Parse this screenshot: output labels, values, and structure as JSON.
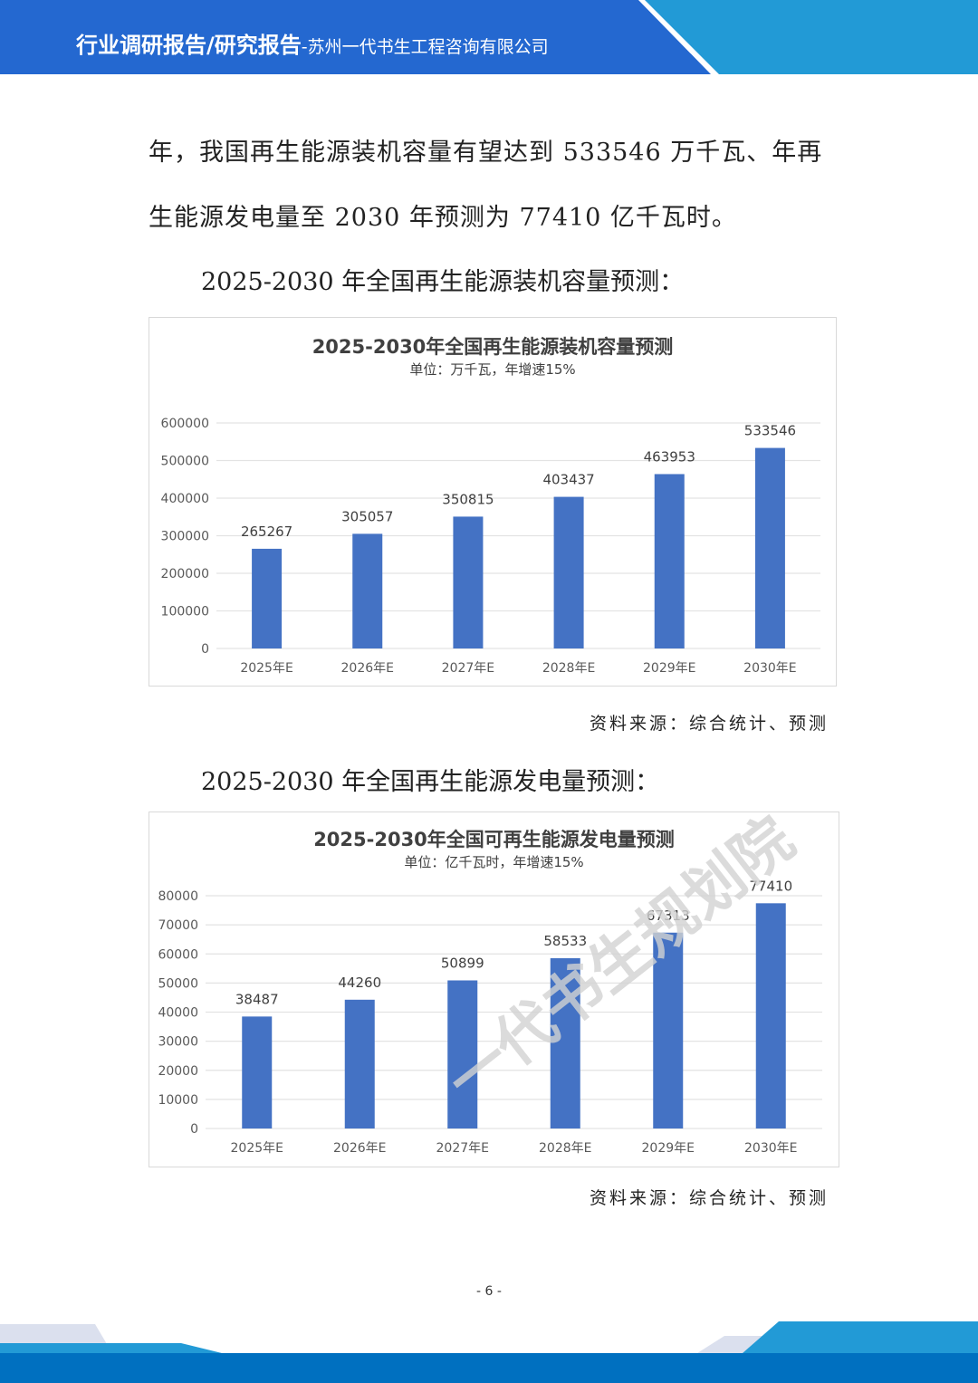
{
  "header": {
    "title_main": "行业调研报告/研究报告",
    "title_sub": "-苏州一代书生工程咨询有限公司",
    "colors": {
      "dark": "#2468d0",
      "light": "#229ad6"
    }
  },
  "body": {
    "para_line1": "年，我国再生能源装机容量有望达到 533546 万千瓦、年再",
    "para_line2": "生能源发电量至 2030 年预测为 77410 亿千瓦时。",
    "caption1": "2025-2030 年全国再生能源装机容量预测：",
    "source1": "资料来源：综合统计、预测",
    "caption2": "2025-2030 年全国再生能源发电量预测：",
    "source2": "资料来源：综合统计、预测"
  },
  "chart_data": [
    {
      "type": "bar",
      "title": "2025-2030年全国再生能源装机容量预测",
      "subtitle": "单位：万千瓦，年增速15%",
      "categories": [
        "2025年E",
        "2026年E",
        "2027年E",
        "2028年E",
        "2029年E",
        "2030年E"
      ],
      "values": [
        265267,
        305057,
        350815,
        403437,
        463953,
        533546
      ],
      "data_labels": [
        "265267",
        "305057",
        "350815",
        "403437",
        "463953",
        "533546"
      ],
      "yticks": [
        "0",
        "100000",
        "200000",
        "300000",
        "400000",
        "500000",
        "600000"
      ],
      "ylim": [
        0,
        600000
      ],
      "xlabel": "",
      "ylabel": "",
      "grid": true,
      "legend": "none",
      "bar_color": "#4472c4"
    },
    {
      "type": "bar",
      "title": "2025-2030年全国可再生能源发电量预测",
      "subtitle": "单位：亿千瓦时，年增速15%",
      "categories": [
        "2025年E",
        "2026年E",
        "2027年E",
        "2028年E",
        "2029年E",
        "2030年E"
      ],
      "values": [
        38487,
        44260,
        50899,
        58533,
        67313,
        77410
      ],
      "data_labels": [
        "38487",
        "44260",
        "50899",
        "58533",
        "67313",
        "77410"
      ],
      "yticks": [
        "0",
        "10000",
        "20000",
        "30000",
        "40000",
        "50000",
        "60000",
        "70000",
        "80000"
      ],
      "ylim": [
        0,
        80000
      ],
      "xlabel": "",
      "ylabel": "",
      "grid": true,
      "legend": "none",
      "bar_color": "#4472c4"
    }
  ],
  "watermark": "一代书生规划院",
  "page_number": "- 6 -"
}
